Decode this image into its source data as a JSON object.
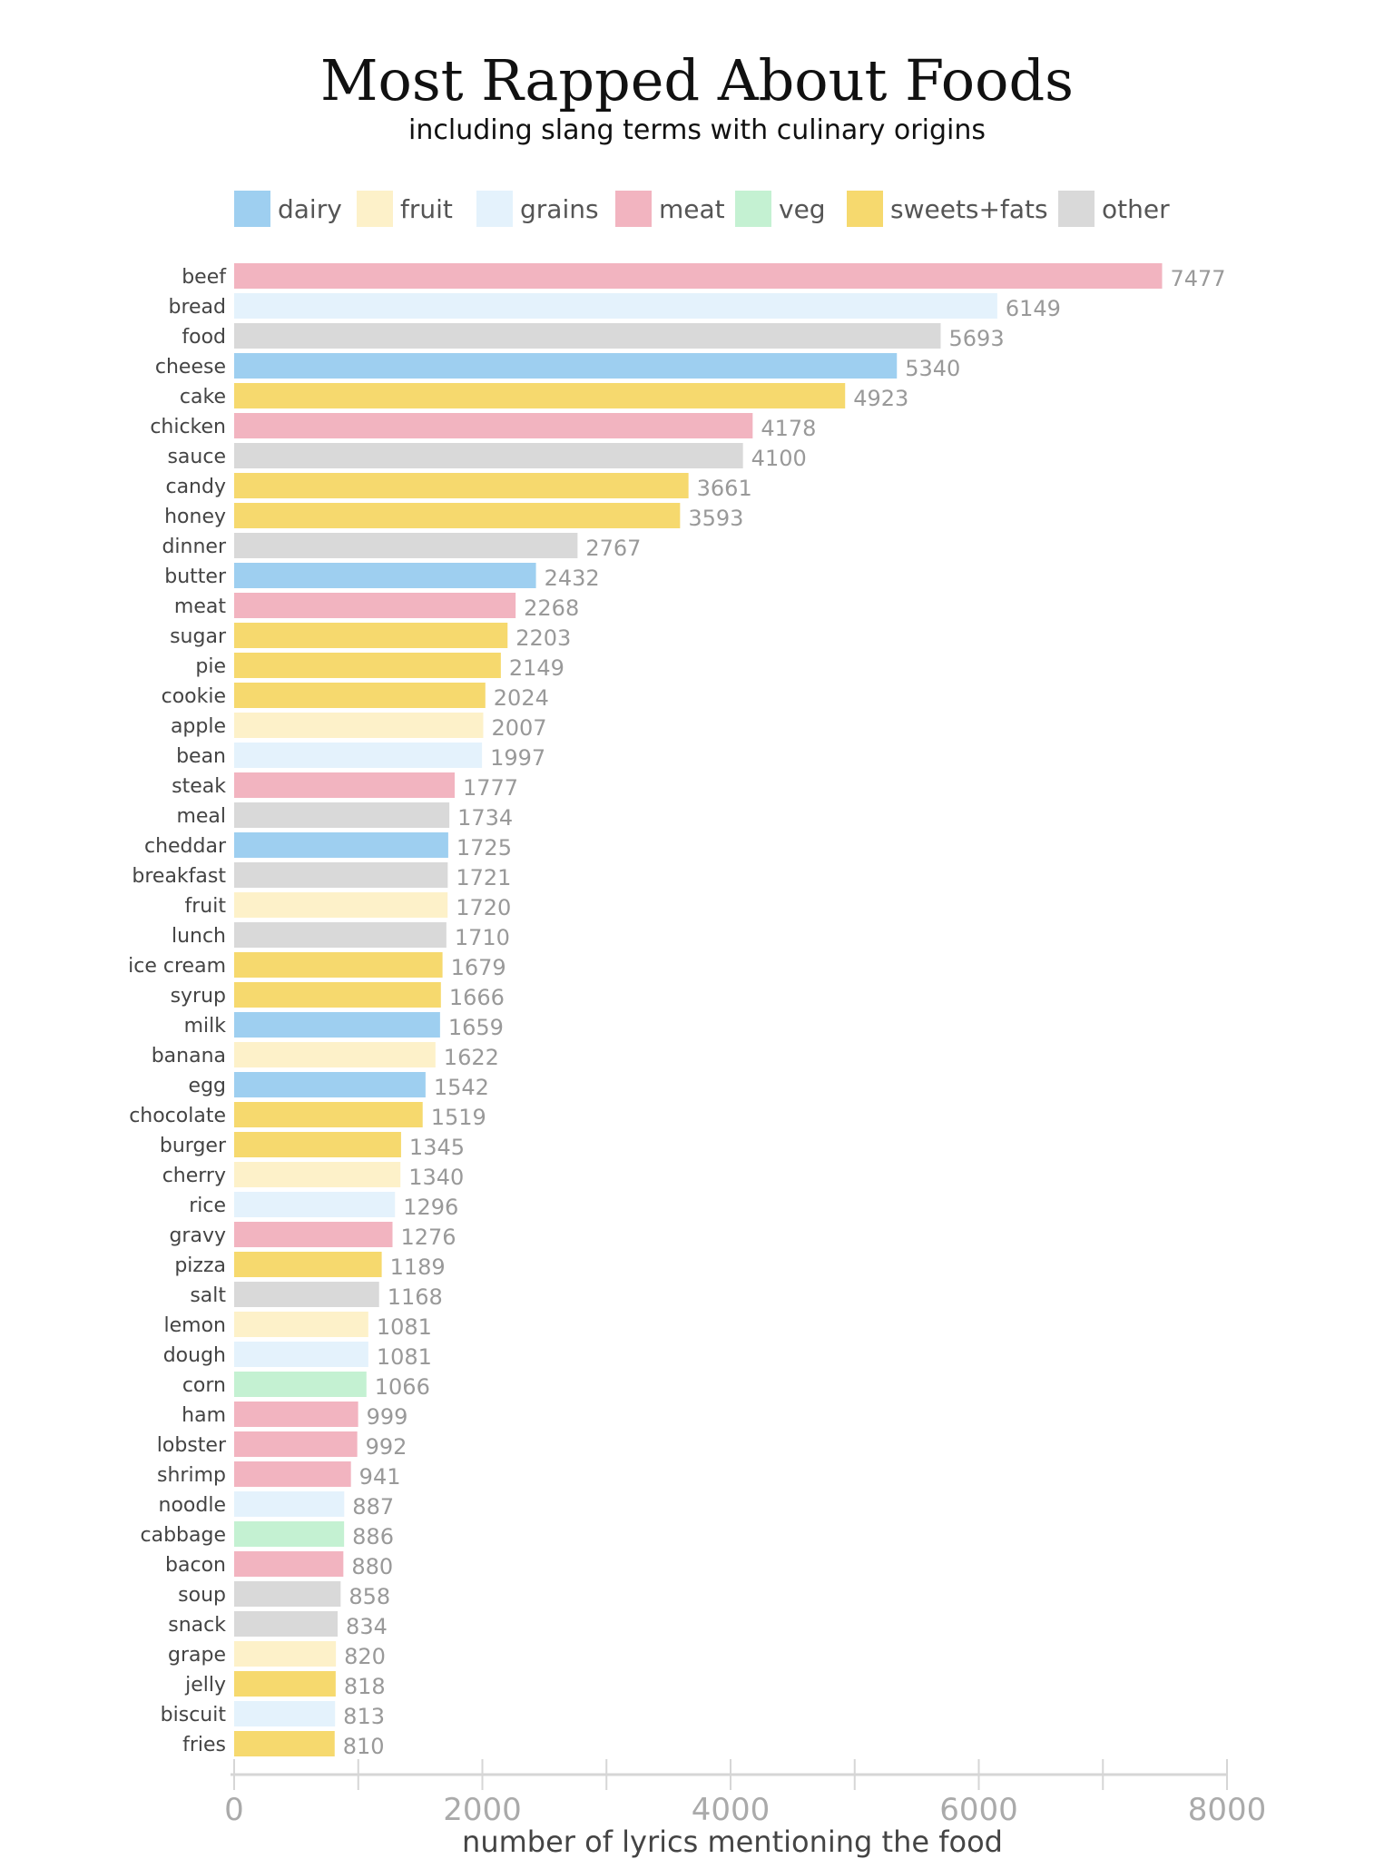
{
  "chart_data": {
    "type": "bar",
    "orientation": "horizontal",
    "title": "Most Rapped About Foods",
    "subtitle": "including slang terms with culinary origins",
    "xlabel": "number of lyrics mentioning the food",
    "ylabel": "",
    "xlim": [
      0,
      8000
    ],
    "xticks": [
      0,
      2000,
      4000,
      6000,
      8000
    ],
    "xticks_minor": [
      1000,
      3000,
      5000,
      7000
    ],
    "grid": false,
    "legend_position": "top",
    "legend": [
      {
        "key": "dairy",
        "label": "dairy",
        "color": "#9ecff0"
      },
      {
        "key": "fruit",
        "label": "fruit",
        "color": "#fdf1c9"
      },
      {
        "key": "grains",
        "label": "grains",
        "color": "#e4f2fc"
      },
      {
        "key": "meat",
        "label": "meat",
        "color": "#f2b4c0"
      },
      {
        "key": "veg",
        "label": "veg",
        "color": "#c4f1d2"
      },
      {
        "key": "sweets_fats",
        "label": "sweets+fats",
        "color": "#f6d96e"
      },
      {
        "key": "other",
        "label": "other",
        "color": "#d9d9d9"
      }
    ],
    "bars": [
      {
        "label": "beef",
        "value": 7477,
        "category": "meat"
      },
      {
        "label": "bread",
        "value": 6149,
        "category": "grains"
      },
      {
        "label": "food",
        "value": 5693,
        "category": "other"
      },
      {
        "label": "cheese",
        "value": 5340,
        "category": "dairy"
      },
      {
        "label": "cake",
        "value": 4923,
        "category": "sweets_fats"
      },
      {
        "label": "chicken",
        "value": 4178,
        "category": "meat"
      },
      {
        "label": "sauce",
        "value": 4100,
        "category": "other"
      },
      {
        "label": "candy",
        "value": 3661,
        "category": "sweets_fats"
      },
      {
        "label": "honey",
        "value": 3593,
        "category": "sweets_fats"
      },
      {
        "label": "dinner",
        "value": 2767,
        "category": "other"
      },
      {
        "label": "butter",
        "value": 2432,
        "category": "dairy"
      },
      {
        "label": "meat",
        "value": 2268,
        "category": "meat"
      },
      {
        "label": "sugar",
        "value": 2203,
        "category": "sweets_fats"
      },
      {
        "label": "pie",
        "value": 2149,
        "category": "sweets_fats"
      },
      {
        "label": "cookie",
        "value": 2024,
        "category": "sweets_fats"
      },
      {
        "label": "apple",
        "value": 2007,
        "category": "fruit"
      },
      {
        "label": "bean",
        "value": 1997,
        "category": "grains"
      },
      {
        "label": "steak",
        "value": 1777,
        "category": "meat"
      },
      {
        "label": "meal",
        "value": 1734,
        "category": "other"
      },
      {
        "label": "cheddar",
        "value": 1725,
        "category": "dairy"
      },
      {
        "label": "breakfast",
        "value": 1721,
        "category": "other"
      },
      {
        "label": "fruit",
        "value": 1720,
        "category": "fruit"
      },
      {
        "label": "lunch",
        "value": 1710,
        "category": "other"
      },
      {
        "label": "ice cream",
        "value": 1679,
        "category": "sweets_fats"
      },
      {
        "label": "syrup",
        "value": 1666,
        "category": "sweets_fats"
      },
      {
        "label": "milk",
        "value": 1659,
        "category": "dairy"
      },
      {
        "label": "banana",
        "value": 1622,
        "category": "fruit"
      },
      {
        "label": "egg",
        "value": 1542,
        "category": "dairy"
      },
      {
        "label": "chocolate",
        "value": 1519,
        "category": "sweets_fats"
      },
      {
        "label": "burger",
        "value": 1345,
        "category": "sweets_fats"
      },
      {
        "label": "cherry",
        "value": 1340,
        "category": "fruit"
      },
      {
        "label": "rice",
        "value": 1296,
        "category": "grains"
      },
      {
        "label": "gravy",
        "value": 1276,
        "category": "meat"
      },
      {
        "label": "pizza",
        "value": 1189,
        "category": "sweets_fats"
      },
      {
        "label": "salt",
        "value": 1168,
        "category": "other"
      },
      {
        "label": "lemon",
        "value": 1081,
        "category": "fruit"
      },
      {
        "label": "dough",
        "value": 1081,
        "category": "grains"
      },
      {
        "label": "corn",
        "value": 1066,
        "category": "veg"
      },
      {
        "label": "ham",
        "value": 999,
        "category": "meat"
      },
      {
        "label": "lobster",
        "value": 992,
        "category": "meat"
      },
      {
        "label": "shrimp",
        "value": 941,
        "category": "meat"
      },
      {
        "label": "noodle",
        "value": 887,
        "category": "grains"
      },
      {
        "label": "cabbage",
        "value": 886,
        "category": "veg"
      },
      {
        "label": "bacon",
        "value": 880,
        "category": "meat"
      },
      {
        "label": "soup",
        "value": 858,
        "category": "other"
      },
      {
        "label": "snack",
        "value": 834,
        "category": "other"
      },
      {
        "label": "grape",
        "value": 820,
        "category": "fruit"
      },
      {
        "label": "jelly",
        "value": 818,
        "category": "sweets_fats"
      },
      {
        "label": "biscuit",
        "value": 813,
        "category": "grains"
      },
      {
        "label": "fries",
        "value": 810,
        "category": "sweets_fats"
      }
    ]
  }
}
